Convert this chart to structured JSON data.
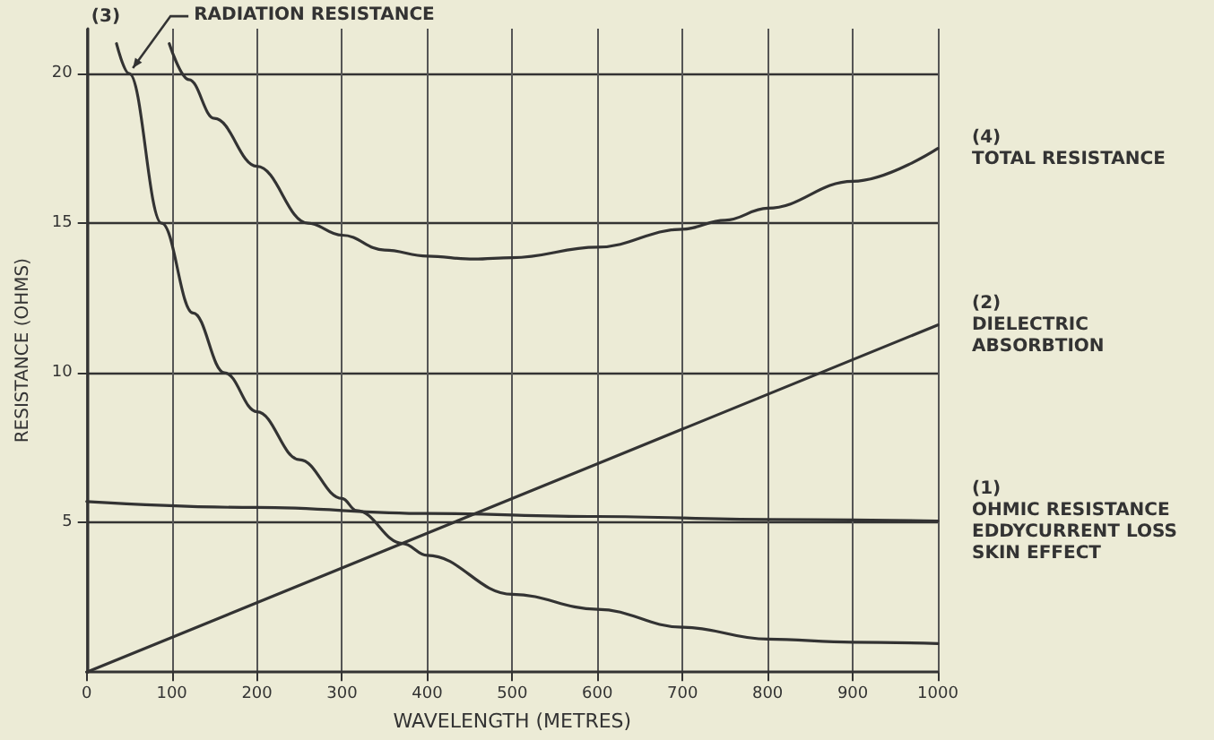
{
  "chart_data": {
    "type": "line",
    "xlabel": "WAVELENGTH (METRES)",
    "ylabel": "RESISTANCE (OHMS)",
    "xlim": [
      0,
      1000
    ],
    "xticks": [
      0,
      100,
      200,
      300,
      400,
      500,
      600,
      700,
      800,
      900,
      1000
    ],
    "ylim": [
      0,
      21.5
    ],
    "yticks": [
      5,
      10,
      15,
      20
    ],
    "grid": true,
    "legend": false,
    "marker": "none",
    "line_style": "solid",
    "series": [
      {
        "name": "(1)\nOHMIC RESISTANCE\nEDDYCURRENT LOSS\nSKIN EFFECT",
        "color": "#333333",
        "x": [
          0,
          200,
          400,
          600,
          800,
          1000
        ],
        "values": [
          5.7,
          5.5,
          5.3,
          5.2,
          5.1,
          5.05
        ]
      },
      {
        "name": "(2)\nDIELECTRIC\nABSORBTION",
        "color": "#333333",
        "x": [
          0,
          1000
        ],
        "values": [
          0,
          11.6
        ]
      },
      {
        "name": "(3)",
        "color": "#333333",
        "x": [
          35,
          50,
          88,
          125,
          162,
          200,
          250,
          300,
          317,
          371,
          400,
          500,
          600,
          700,
          800,
          900,
          1000
        ],
        "values": [
          21,
          20,
          15,
          12,
          10,
          8.7,
          7.1,
          5.8,
          5.4,
          4.3,
          3.9,
          2.6,
          2.1,
          1.5,
          1.1,
          1.0,
          0.95
        ]
      },
      {
        "name": "(4)\nTOTAL RESISTANCE",
        "color": "#333333",
        "x": [
          97,
          120,
          150,
          200,
          260,
          300,
          350,
          400,
          455,
          500,
          600,
          700,
          750,
          800,
          900,
          1000
        ],
        "values": [
          21,
          19.8,
          18.5,
          16.9,
          15,
          14.6,
          14.1,
          13.9,
          13.8,
          13.85,
          14.2,
          14.8,
          15.1,
          15.5,
          16.4,
          17.5
        ]
      }
    ],
    "annotations": [
      {
        "text": "RADIATION RESISTANCE",
        "x": 50,
        "y": 20
      }
    ]
  }
}
